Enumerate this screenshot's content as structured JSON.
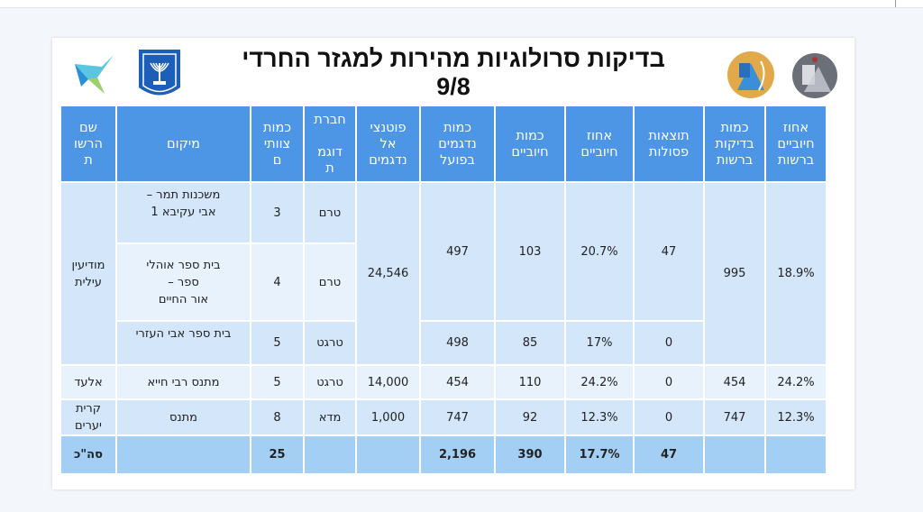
{
  "slide": {
    "title": "בדיקות סרולוגיות מהירות למגזר החרדי",
    "subtitle": "9/8",
    "logos": [
      "israel-emblem",
      "ministry-logo-star",
      "home-front-command-logo",
      "army-logo"
    ]
  },
  "table": {
    "headers": [
      "אחוז חיוביים ברשות",
      "כמות בדיקות ברשות",
      "תוצאות פסולות",
      "אחוז חיוביים",
      "כמות חיוביים",
      "כמות נדגמים בפועל",
      "פוטנציאל נדגמים",
      "חברת דוגמת",
      "כמות צוותים",
      "מיקום",
      "שם הרשות"
    ],
    "header_lines": {
      "potential": [
        "פוטנצי",
        "אל",
        "נדגמים"
      ],
      "company": [
        "חברת",
        "",
        "דוגמ",
        "ת"
      ],
      "teams": [
        "כמות",
        "צוותי",
        "ם"
      ],
      "authority": [
        "שם",
        "הרשו",
        "ת"
      ]
    },
    "rows": [
      {
        "authority": "מודיעין עילית",
        "location": "משכנות תמר – אבי עקיבא 1",
        "teams": "3",
        "company": "טרם",
        "potential": "24,546",
        "sampled": "497",
        "positives": "103",
        "pct": "20.7%",
        "invalid": "47",
        "auth_tests": "995",
        "auth_pct": "18.9%"
      },
      {
        "location_lines": [
          "בית ספר אוהלי",
          "ספר –",
          "אור החיים"
        ],
        "teams": "4",
        "company": "טרם"
      },
      {
        "location": "בית ספר אבי העזרי",
        "teams": "5",
        "company": "טרגט",
        "sampled": "498",
        "positives": "85",
        "pct": "17%",
        "invalid": "0"
      },
      {
        "authority": "אלעד",
        "location": "מתנס רבי חייא",
        "teams": "5",
        "company": "טרגט",
        "potential": "14,000",
        "sampled": "454",
        "positives": "110",
        "pct": "24.2%",
        "invalid": "0",
        "auth_tests": "454",
        "auth_pct": "24.2%"
      },
      {
        "authority": "קרית יערים",
        "location": "מתנס",
        "teams": "8",
        "company": "מדא",
        "potential": "1,000",
        "sampled": "747",
        "positives": "92",
        "pct": "12.3%",
        "invalid": "0",
        "auth_tests": "747",
        "auth_pct": "12.3%"
      }
    ],
    "total": {
      "label": "סה\"כ",
      "teams": "25",
      "sampled": "2,196",
      "positives": "390",
      "pct": "17.7%",
      "invalid": "47"
    }
  }
}
